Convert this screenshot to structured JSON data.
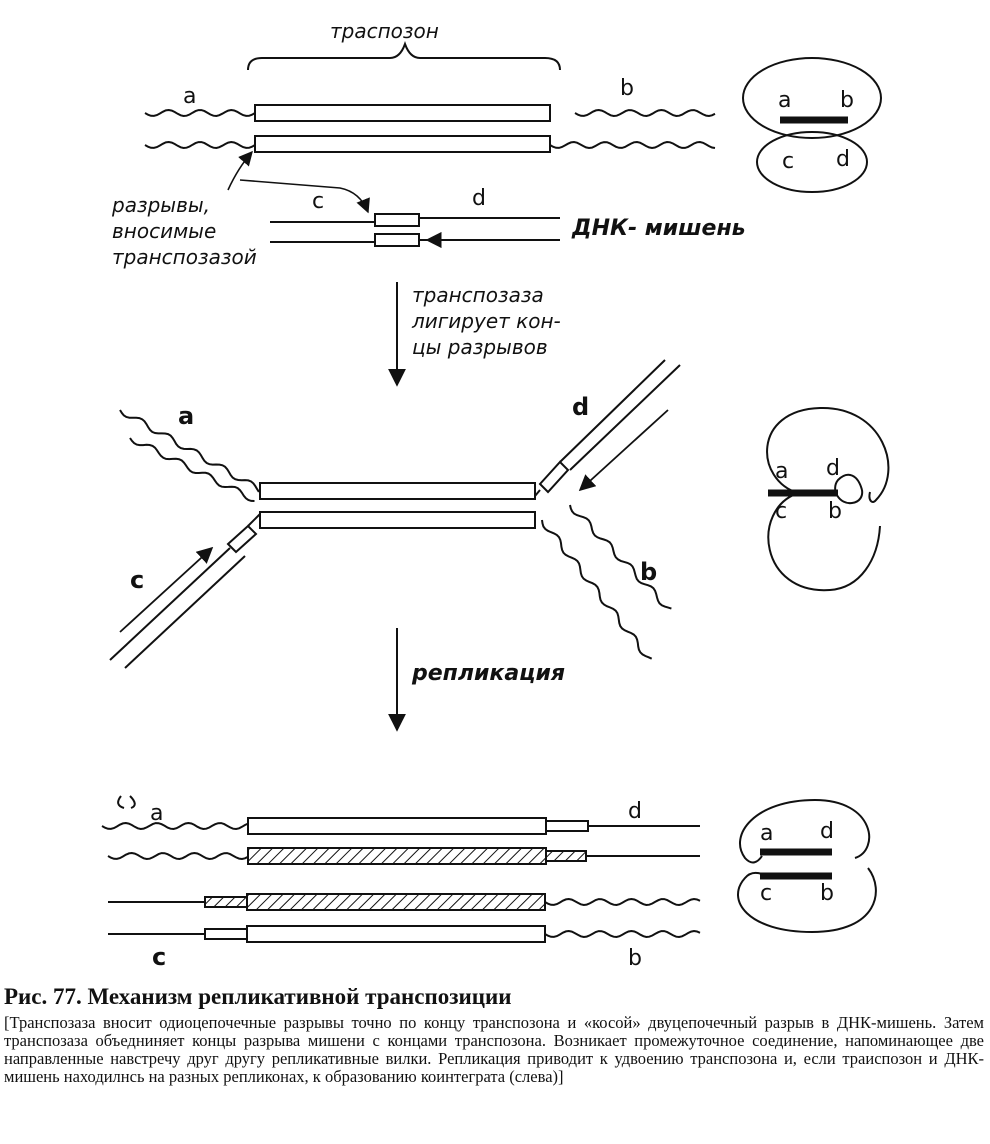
{
  "panel1": {
    "title": "траспозон",
    "label_a": "a",
    "label_b": "b",
    "label_c": "c",
    "label_d": "d",
    "breaks_line1": "разрывы,",
    "breaks_line2": "вносимые",
    "breaks_line3": "транспозазой",
    "target_label": "ДНК- мишень",
    "circle_a": "a",
    "circle_b": "b",
    "circle_c": "c",
    "circle_d": "d"
  },
  "arrow1": {
    "line1": "транспозаза",
    "line2": "лигирует кон-",
    "line3": "цы разрывов"
  },
  "panel2": {
    "label_a": "a",
    "label_b": "b",
    "label_c": "c",
    "label_d": "d",
    "circle_a": "a",
    "circle_d": "d",
    "circle_c": "c",
    "circle_b": "b"
  },
  "arrow2": {
    "label": "репликация"
  },
  "panel3": {
    "label_a": "a",
    "label_d": "d",
    "label_c": "c",
    "label_b": "b",
    "circle_a": "a",
    "circle_d": "d",
    "circle_c": "c",
    "circle_b": "b"
  },
  "caption": {
    "title": "Рис. 77. Механизм репликативной транспозиции",
    "text": "[Транспозаза вносит одиоцепочечные разрывы точно по концу транспозона и «косой» двуцепочечный разрыв в ДНК-мишень. Затем транспозаза объедниняет концы разрыва мишени с концами транспозона. Возникает промежуточное соединение, напоминающее две направленные навстречу друг другу репликативные вилки. Репликация приводит к удвоению транспозона и, если траиспозон и ДНК-мишень находилнсь на разных репликонах, к образованию коинтеграта (слева)]"
  }
}
